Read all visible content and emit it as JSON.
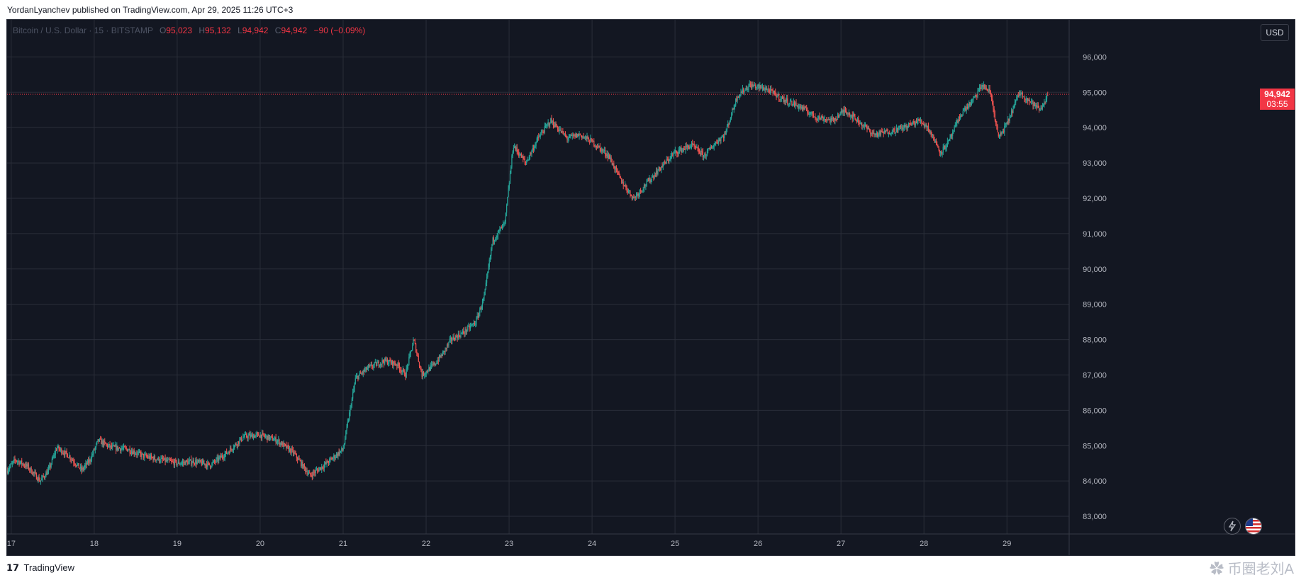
{
  "caption": {
    "author": "YordanLyanchev",
    "text": "published on TradingView.com, Apr 29, 2025 11:26 UTC+3"
  },
  "legend": {
    "symbol": "Bitcoin / U.S. Dollar · 15 · BITSTAMP",
    "o_key": "O",
    "open": "95,023",
    "h_key": "H",
    "high": "95,132",
    "l_key": "L",
    "low": "94,942",
    "c_key": "C",
    "close": "94,942",
    "change": "−90 (−0.09%)"
  },
  "currency_button": "USD",
  "last_price": {
    "price": "94,942",
    "countdown": "03:55"
  },
  "footer": {
    "logo": "𝟭𝟳",
    "brand": "TradingView"
  },
  "watermark": "币圈老刘A",
  "icons": {
    "lightning": "lightning-icon",
    "flag": "us-flag-icon",
    "watermark_logo": "paw-icon"
  },
  "colors": {
    "background": "#131722",
    "grid": "#2a2e39",
    "up": "#26a69a",
    "down": "#ef5350",
    "axis_text": "#b2b5be",
    "last_price": "#f23645"
  },
  "chart_data": {
    "type": "candlestick",
    "symbol": "Bitcoin / U.S. Dollar",
    "interval": "15",
    "exchange": "BITSTAMP",
    "currency": "USD",
    "x_ticks": [
      "17",
      "18",
      "19",
      "20",
      "21",
      "22",
      "23",
      "24",
      "25",
      "26",
      "27",
      "28",
      "29"
    ],
    "y_ticks": [
      83000,
      84000,
      85000,
      86000,
      87000,
      88000,
      89000,
      90000,
      91000,
      92000,
      93000,
      94000,
      95000,
      96000
    ],
    "y_tick_labels": [
      "83,000",
      "84,000",
      "85,000",
      "86,000",
      "87,000",
      "88,000",
      "89,000",
      "90,000",
      "91,000",
      "92,000",
      "93,000",
      "94,000",
      "95,000",
      "96,000"
    ],
    "ylim": [
      82500,
      97050
    ],
    "xlim_days": [
      16.95,
      29.75
    ],
    "grid": true,
    "last_price": 94942,
    "price_path": [
      [
        16.95,
        84300
      ],
      [
        17.05,
        84600
      ],
      [
        17.2,
        84400
      ],
      [
        17.35,
        84000
      ],
      [
        17.45,
        84300
      ],
      [
        17.55,
        84950
      ],
      [
        17.7,
        84700
      ],
      [
        17.85,
        84300
      ],
      [
        17.95,
        84600
      ],
      [
        18.05,
        85150
      ],
      [
        18.2,
        84950
      ],
      [
        18.4,
        84900
      ],
      [
        18.6,
        84700
      ],
      [
        18.8,
        84600
      ],
      [
        19.0,
        84500
      ],
      [
        19.2,
        84550
      ],
      [
        19.4,
        84450
      ],
      [
        19.6,
        84800
      ],
      [
        19.8,
        85250
      ],
      [
        20.0,
        85300
      ],
      [
        20.2,
        85150
      ],
      [
        20.4,
        84800
      ],
      [
        20.6,
        84150
      ],
      [
        20.8,
        84500
      ],
      [
        21.0,
        84900
      ],
      [
        21.15,
        86900
      ],
      [
        21.3,
        87200
      ],
      [
        21.5,
        87400
      ],
      [
        21.65,
        87300
      ],
      [
        21.75,
        87000
      ],
      [
        21.85,
        88000
      ],
      [
        21.95,
        87000
      ],
      [
        22.1,
        87300
      ],
      [
        22.2,
        87600
      ],
      [
        22.3,
        88000
      ],
      [
        22.45,
        88200
      ],
      [
        22.6,
        88500
      ],
      [
        22.7,
        89200
      ],
      [
        22.8,
        90800
      ],
      [
        22.95,
        91300
      ],
      [
        23.05,
        93500
      ],
      [
        23.2,
        93000
      ],
      [
        23.35,
        93700
      ],
      [
        23.5,
        94200
      ],
      [
        23.7,
        93700
      ],
      [
        23.85,
        93800
      ],
      [
        24.0,
        93600
      ],
      [
        24.2,
        93200
      ],
      [
        24.35,
        92500
      ],
      [
        24.5,
        92000
      ],
      [
        24.65,
        92400
      ],
      [
        24.8,
        92800
      ],
      [
        25.0,
        93300
      ],
      [
        25.2,
        93500
      ],
      [
        25.35,
        93200
      ],
      [
        25.5,
        93600
      ],
      [
        25.6,
        93800
      ],
      [
        25.75,
        94900
      ],
      [
        25.9,
        95200
      ],
      [
        26.1,
        95100
      ],
      [
        26.3,
        94800
      ],
      [
        26.5,
        94600
      ],
      [
        26.7,
        94300
      ],
      [
        26.9,
        94200
      ],
      [
        27.05,
        94500
      ],
      [
        27.25,
        94100
      ],
      [
        27.4,
        93800
      ],
      [
        27.6,
        93900
      ],
      [
        27.75,
        94000
      ],
      [
        27.95,
        94200
      ],
      [
        28.05,
        94000
      ],
      [
        28.2,
        93300
      ],
      [
        28.3,
        93600
      ],
      [
        28.45,
        94400
      ],
      [
        28.6,
        94800
      ],
      [
        28.7,
        95200
      ],
      [
        28.8,
        95000
      ],
      [
        28.9,
        93700
      ],
      [
        29.0,
        94100
      ],
      [
        29.15,
        95000
      ],
      [
        29.3,
        94700
      ],
      [
        29.4,
        94500
      ],
      [
        29.5,
        94942
      ]
    ]
  }
}
